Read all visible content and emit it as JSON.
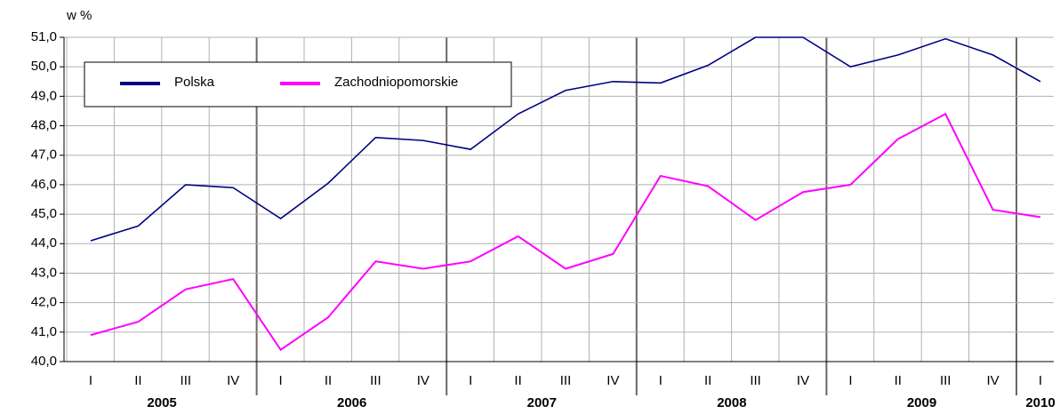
{
  "chart_data": {
    "type": "line",
    "y_label": "w %",
    "categories": [
      "I",
      "II",
      "III",
      "IV",
      "I",
      "II",
      "III",
      "IV",
      "I",
      "II",
      "III",
      "IV",
      "I",
      "II",
      "III",
      "IV",
      "I",
      "II",
      "III",
      "IV",
      "I"
    ],
    "years": [
      "2005",
      "2006",
      "2007",
      "2008",
      "2009",
      "2010"
    ],
    "series": [
      {
        "name": "Polska",
        "color": "#000080",
        "values": [
          44.1,
          44.6,
          46.0,
          45.9,
          44.85,
          46.05,
          47.6,
          47.5,
          47.2,
          48.4,
          49.2,
          49.5,
          49.45,
          50.05,
          51.0,
          51.0,
          50.0,
          50.4,
          50.95,
          50.4,
          49.5
        ]
      },
      {
        "name": "Zachodniopomorskie",
        "color": "#ff00ff",
        "values": [
          40.9,
          41.35,
          42.45,
          42.8,
          40.4,
          41.5,
          43.4,
          43.15,
          43.4,
          44.25,
          43.15,
          43.65,
          46.3,
          45.95,
          44.8,
          45.75,
          46.0,
          47.55,
          48.4,
          45.15,
          44.9
        ]
      }
    ],
    "ylim": [
      40,
      51
    ],
    "yticks": [
      {
        "value": 40,
        "label": "40,0"
      },
      {
        "value": 41,
        "label": "41,0"
      },
      {
        "value": 42,
        "label": "42,0"
      },
      {
        "value": 43,
        "label": "43,0"
      },
      {
        "value": 44,
        "label": "44,0"
      },
      {
        "value": 45,
        "label": "45,0"
      },
      {
        "value": 46,
        "label": "46,0"
      },
      {
        "value": 47,
        "label": "47,0"
      },
      {
        "value": 48,
        "label": "48,0"
      },
      {
        "value": 49,
        "label": "49,0"
      },
      {
        "value": 50,
        "label": "50,0"
      },
      {
        "value": 51,
        "label": "51,0"
      }
    ],
    "grid": true,
    "legend": "top-left"
  }
}
